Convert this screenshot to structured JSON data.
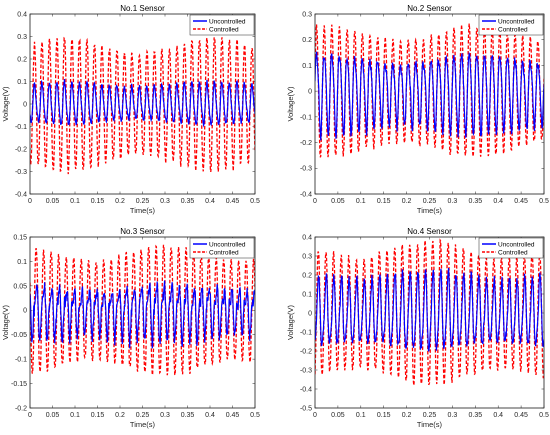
{
  "chart_data": [
    {
      "type": "line",
      "title": "No.1 Sensor",
      "xlabel": "Time(s)",
      "ylabel": "Voltage(V)",
      "xlim": [
        0,
        0.5
      ],
      "ylim": [
        -0.4,
        0.4
      ],
      "xticks": [
        "0",
        "0.05",
        "0.1",
        "0.15",
        "0.2",
        "0.25",
        "0.3",
        "0.35",
        "0.4",
        "0.45",
        "0.5"
      ],
      "yticks": [
        "-0.4",
        "-0.3",
        "-0.2",
        "-0.1",
        "0",
        "0.1",
        "0.2",
        "0.3",
        "0.4"
      ],
      "legend_position": "top-right",
      "series": [
        {
          "name": "Uncontrolled",
          "color": "#0000ff",
          "style": "solid",
          "frequency_hz": 60,
          "amplitude_approx": 0.09
        },
        {
          "name": "Controlled",
          "color": "#ff0000",
          "style": "dashed",
          "frequency_hz": 60,
          "amplitude_approx": 0.29
        }
      ]
    },
    {
      "type": "line",
      "title": "No.2 Sensor",
      "xlabel": "Time(s)",
      "ylabel": "Voltage(V)",
      "xlim": [
        0,
        0.5
      ],
      "ylim": [
        -0.4,
        0.3
      ],
      "xticks": [
        "0",
        "0.05",
        "0.1",
        "0.15",
        "0.2",
        "0.25",
        "0.3",
        "0.35",
        "0.4",
        "0.45",
        "0.5"
      ],
      "yticks": [
        "-0.4",
        "-0.3",
        "-0.2",
        "-0.1",
        "0",
        "0.1",
        "0.2",
        "0.3"
      ],
      "legend_position": "top-right",
      "series": [
        {
          "name": "Uncontrolled",
          "color": "#0000ff",
          "style": "solid",
          "frequency_hz": 60,
          "amplitude_approx": 0.15
        },
        {
          "name": "Controlled",
          "color": "#ff0000",
          "style": "dashed",
          "frequency_hz": 60,
          "amplitude_approx": 0.25
        }
      ]
    },
    {
      "type": "line",
      "title": "No.3 Sensor",
      "xlabel": "Time(s)",
      "ylabel": "Voltage(V)",
      "xlim": [
        0,
        0.5
      ],
      "ylim": [
        -0.2,
        0.15
      ],
      "xticks": [
        "0",
        "0.05",
        "0.1",
        "0.15",
        "0.2",
        "0.25",
        "0.3",
        "0.35",
        "0.4",
        "0.45",
        "0.5"
      ],
      "yticks": [
        "-0.2",
        "-0.15",
        "-0.1",
        "-0.05",
        "0",
        "0.05",
        "0.1",
        "0.15"
      ],
      "legend_position": "top-right",
      "series": [
        {
          "name": "Uncontrolled",
          "color": "#0000ff",
          "style": "solid",
          "frequency_hz": 60,
          "amplitude_approx": 0.05
        },
        {
          "name": "Controlled",
          "color": "#ff0000",
          "style": "dashed",
          "frequency_hz": 60,
          "amplitude_approx": 0.13
        }
      ]
    },
    {
      "type": "line",
      "title": "No.4 Sensor",
      "xlabel": "Time(s)",
      "ylabel": "Voltage(V)",
      "xlim": [
        0,
        0.5
      ],
      "ylim": [
        -0.5,
        0.4
      ],
      "xticks": [
        "0",
        "0.05",
        "0.1",
        "0.15",
        "0.2",
        "0.25",
        "0.3",
        "0.35",
        "0.4",
        "0.45",
        "0.5"
      ],
      "yticks": [
        "-0.5",
        "-0.4",
        "-0.3",
        "-0.2",
        "-0.1",
        "0",
        "0.1",
        "0.2",
        "0.3",
        "0.4"
      ],
      "legend_position": "top-right",
      "series": [
        {
          "name": "Uncontrolled",
          "color": "#0000ff",
          "style": "solid",
          "frequency_hz": 60,
          "amplitude_approx": 0.2
        },
        {
          "name": "Controlled",
          "color": "#ff0000",
          "style": "dashed",
          "frequency_hz": 60,
          "amplitude_approx": 0.37
        }
      ]
    }
  ]
}
